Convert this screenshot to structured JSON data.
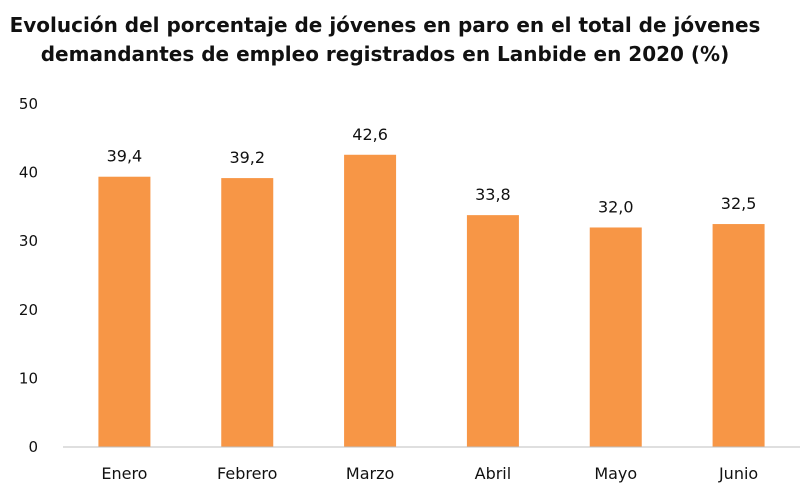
{
  "chart_data": {
    "type": "bar",
    "title_lines": [
      "Evolución del porcentaje de jóvenes en paro en el total de jóvenes",
      "demandantes de empleo registrados en Lanbide en 2020 (%)"
    ],
    "categories": [
      "Enero",
      "Febrero",
      "Marzo",
      "Abril",
      "Mayo",
      "Junio"
    ],
    "values": [
      39.4,
      39.2,
      42.6,
      33.8,
      32.0,
      32.5
    ],
    "value_labels": [
      "39,4",
      "39,2",
      "42,6",
      "33,8",
      "32,0",
      "32,5"
    ],
    "y_ticks": [
      0,
      10,
      20,
      30,
      40,
      50
    ],
    "ylim": [
      0,
      50
    ],
    "xlabel": "",
    "ylabel": "",
    "bar_color": "#F79646",
    "axis_color": "#BFBFBF",
    "grid": false,
    "legend": "none"
  }
}
